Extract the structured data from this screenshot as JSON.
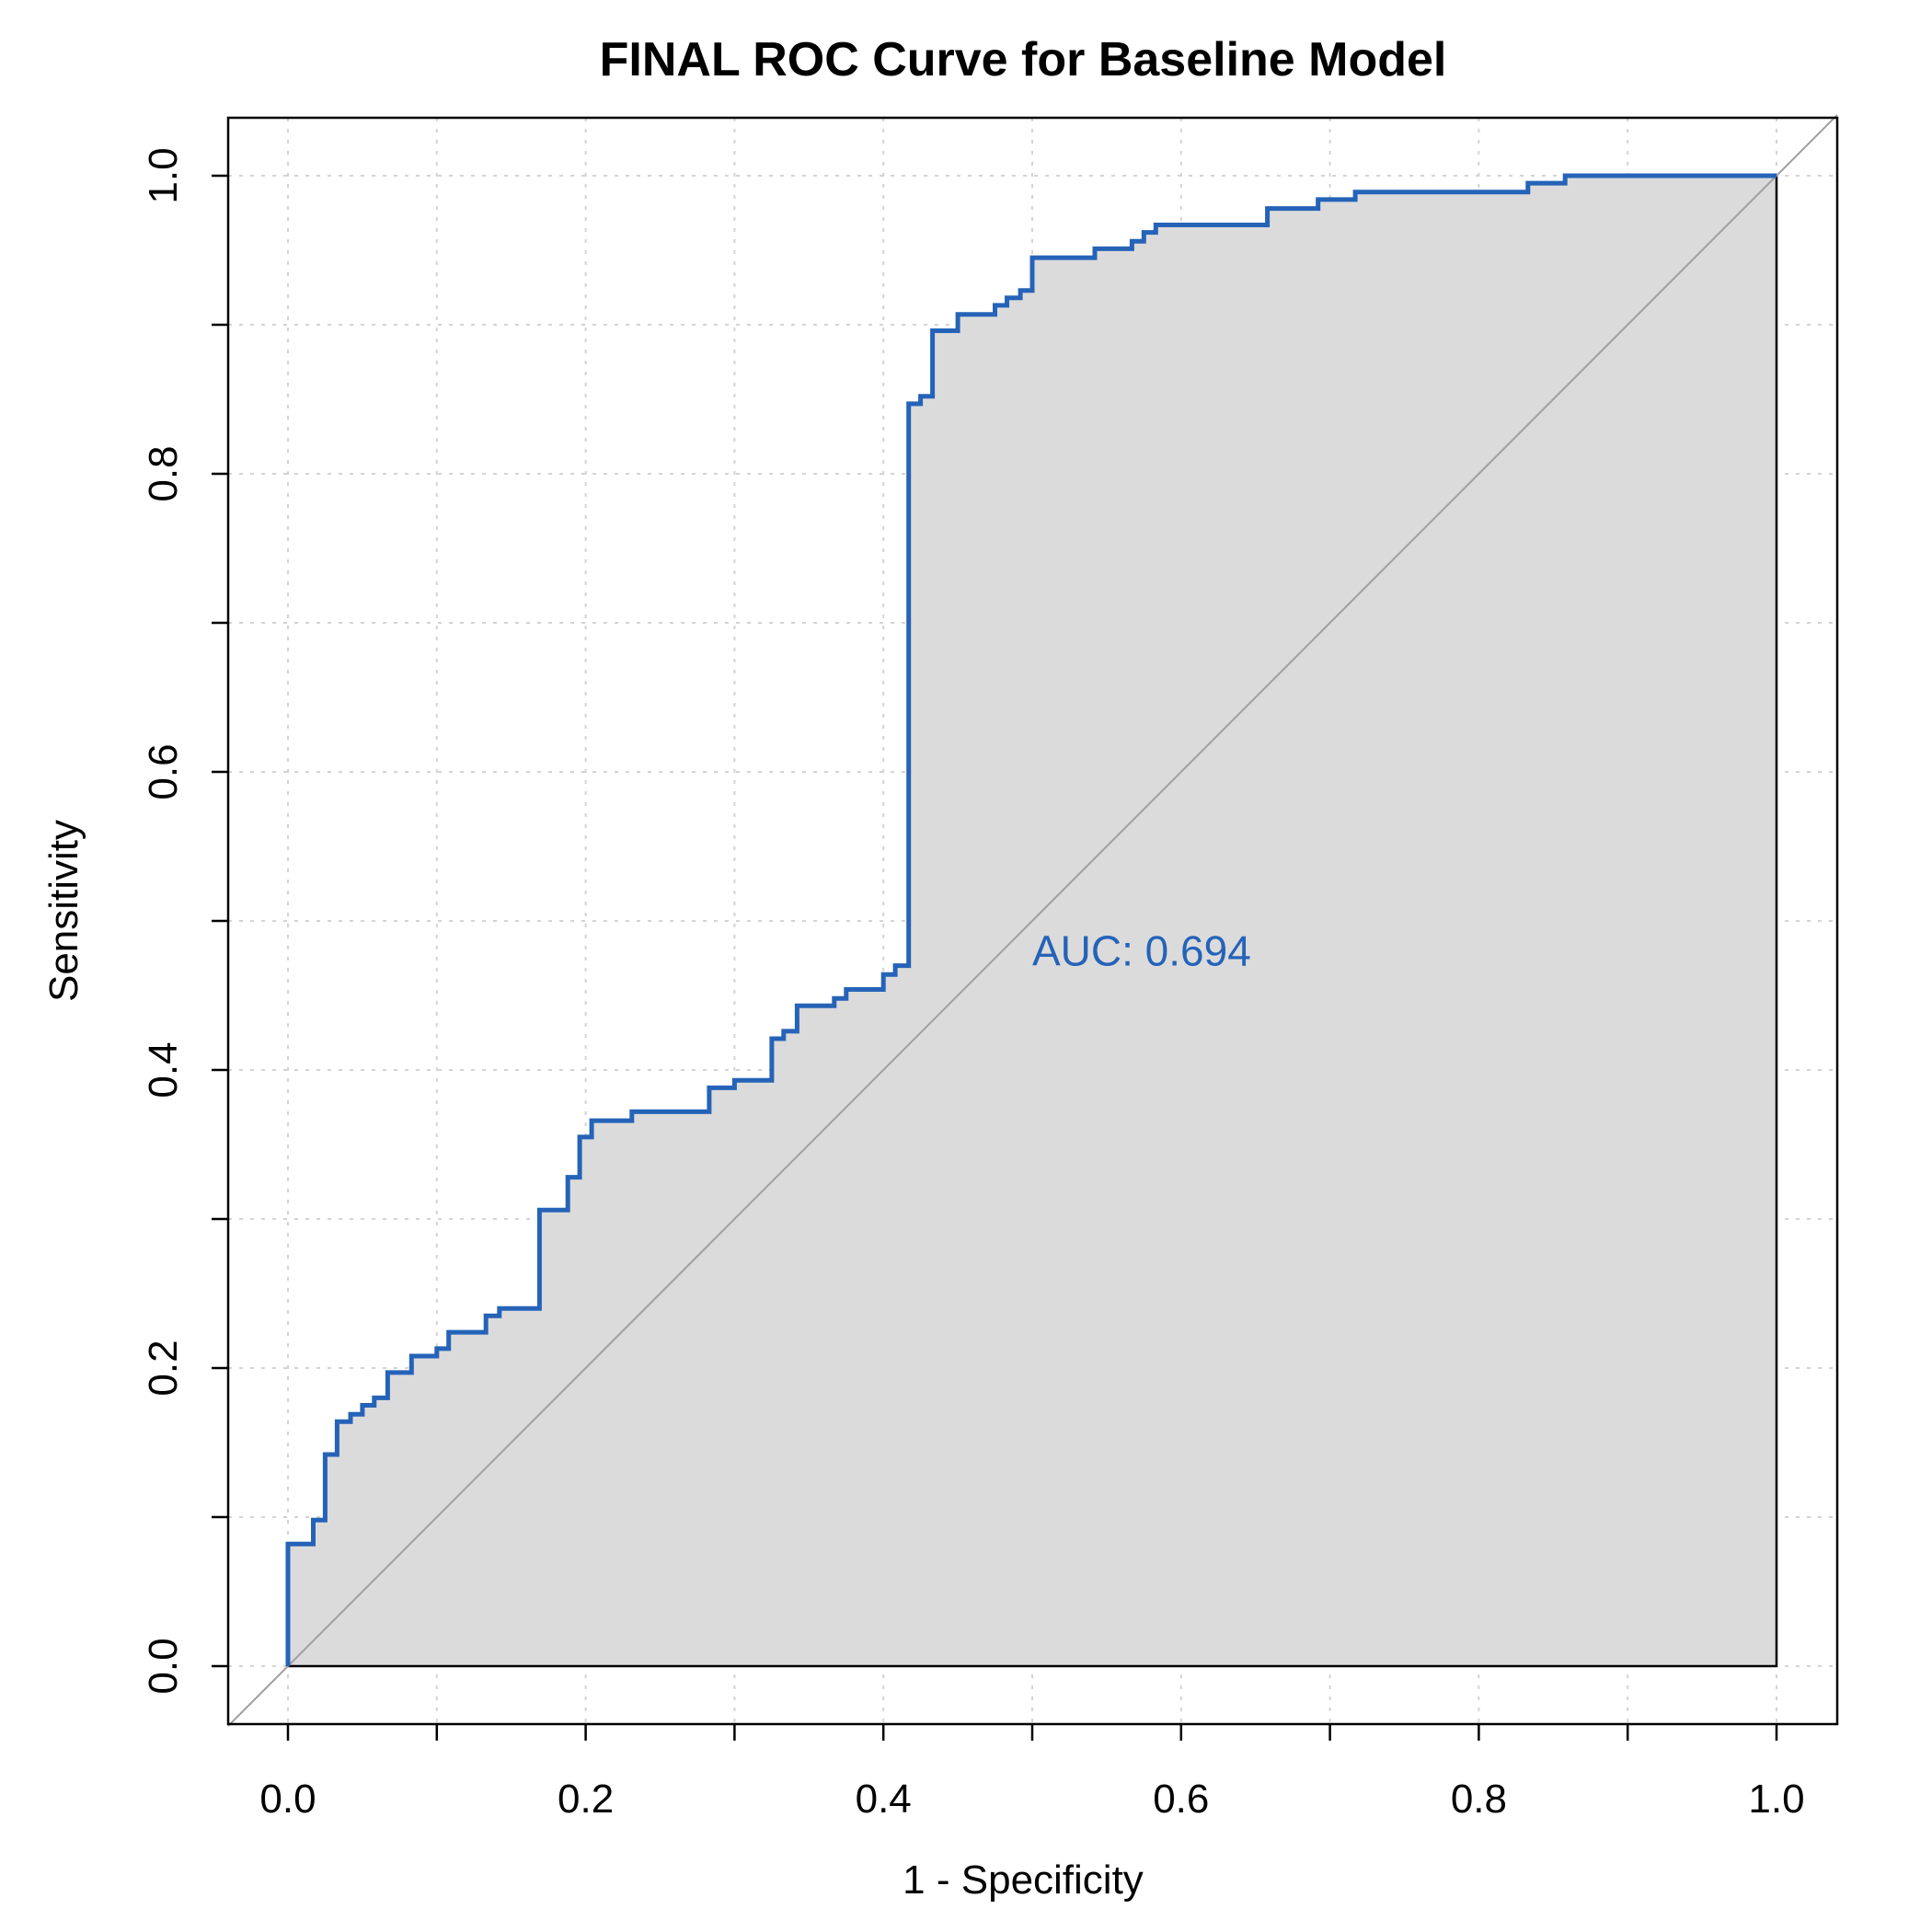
{
  "chart_data": {
    "type": "line",
    "title": "FINAL ROC Curve for Baseline Model",
    "xlabel": "1 - Specificity",
    "ylabel": "Sensitivity",
    "xlim": [
      0,
      1
    ],
    "ylim": [
      0,
      1
    ],
    "x_ticks": [
      "0.0",
      "0.2",
      "0.4",
      "0.6",
      "0.8",
      "1.0"
    ],
    "y_ticks": [
      "0.0",
      "0.2",
      "0.4",
      "0.6",
      "0.8",
      "1.0"
    ],
    "grid": true,
    "auc_text": "AUC: 0.694",
    "auc_position": [
      0.5,
      0.48
    ],
    "colors": {
      "curve": "#2563b8",
      "fill": "#dbdbdb",
      "diagonal": "#a0a0a0",
      "grid": "#d3d3d3"
    },
    "series": [
      {
        "x": [
          0,
          0,
          0.017,
          0.017,
          0.025,
          0.025,
          0.033,
          0.033,
          0.042,
          0.042,
          0.05,
          0.05,
          0.058,
          0.058,
          0.067,
          0.067,
          0.083,
          0.083,
          0.1,
          0.1,
          0.108,
          0.108,
          0.133,
          0.133,
          0.142,
          0.142,
          0.169,
          0.169,
          0.188,
          0.188,
          0.196,
          0.196,
          0.204,
          0.204,
          0.231,
          0.231,
          0.283,
          0.283,
          0.3,
          0.3,
          0.325,
          0.325,
          0.333,
          0.333,
          0.342,
          0.342,
          0.367,
          0.367,
          0.375,
          0.375,
          0.4,
          0.4,
          0.408,
          0.408,
          0.417,
          0.417,
          0.425,
          0.425,
          0.433,
          0.433,
          0.45,
          0.45,
          0.475,
          0.475,
          0.483,
          0.483,
          0.492,
          0.492,
          0.5,
          0.5,
          0.542,
          0.542,
          0.567,
          0.567,
          0.575,
          0.575,
          0.583,
          0.583,
          0.658,
          0.658,
          0.692,
          0.692,
          0.717,
          0.717,
          0.833,
          0.833,
          0.858,
          0.858,
          1.0
        ],
        "y": [
          0,
          0.082,
          0.082,
          0.098,
          0.098,
          0.142,
          0.142,
          0.164,
          0.164,
          0.169,
          0.169,
          0.175,
          0.175,
          0.18,
          0.18,
          0.197,
          0.197,
          0.208,
          0.208,
          0.213,
          0.213,
          0.224,
          0.224,
          0.235,
          0.235,
          0.24,
          0.24,
          0.306,
          0.306,
          0.328,
          0.328,
          0.355,
          0.355,
          0.366,
          0.366,
          0.372,
          0.372,
          0.388,
          0.388,
          0.393,
          0.393,
          0.421,
          0.421,
          0.426,
          0.426,
          0.443,
          0.443,
          0.448,
          0.448,
          0.454,
          0.454,
          0.464,
          0.464,
          0.47,
          0.47,
          0.847,
          0.847,
          0.852,
          0.852,
          0.896,
          0.896,
          0.907,
          0.907,
          0.913,
          0.913,
          0.918,
          0.918,
          0.923,
          0.923,
          0.945,
          0.945,
          0.951,
          0.951,
          0.956,
          0.956,
          0.962,
          0.962,
          0.967,
          0.967,
          0.978,
          0.978,
          0.984,
          0.984,
          0.989,
          0.989,
          0.995,
          0.995,
          1.0,
          1.0
        ]
      }
    ]
  }
}
